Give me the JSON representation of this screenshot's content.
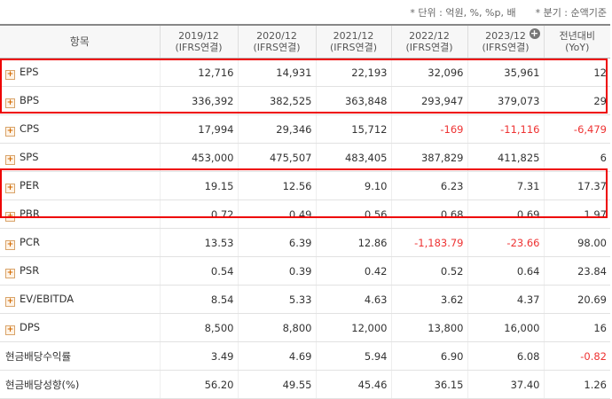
{
  "notes": {
    "unit": "* 단위 : 억원, %, %p, 배",
    "basis": "* 분기 : 순액기준"
  },
  "header": {
    "item": "항목",
    "cols": [
      {
        "l1": "2019/12",
        "l2": "(IFRS연결)"
      },
      {
        "l1": "2020/12",
        "l2": "(IFRS연결)"
      },
      {
        "l1": "2021/12",
        "l2": "(IFRS연결)"
      },
      {
        "l1": "2022/12",
        "l2": "(IFRS연결)"
      },
      {
        "l1": "2023/12",
        "l2": "(IFRS연결)"
      },
      {
        "l1": "전년대비",
        "l2": "(YoY)"
      }
    ]
  },
  "rows": [
    {
      "label": "EPS",
      "expand": true,
      "v": [
        "12,716",
        "14,931",
        "22,193",
        "32,096",
        "35,961",
        "12"
      ]
    },
    {
      "label": "BPS",
      "expand": true,
      "v": [
        "336,392",
        "382,525",
        "363,848",
        "293,947",
        "379,073",
        "29"
      ]
    },
    {
      "label": "CPS",
      "expand": true,
      "v": [
        "17,994",
        "29,346",
        "15,712",
        "-169",
        "-11,116",
        "-6,479"
      ]
    },
    {
      "label": "SPS",
      "expand": true,
      "v": [
        "453,000",
        "475,507",
        "483,405",
        "387,829",
        "411,825",
        "6"
      ]
    },
    {
      "label": "PER",
      "expand": true,
      "v": [
        "19.15",
        "12.56",
        "9.10",
        "6.23",
        "7.31",
        "17.37"
      ]
    },
    {
      "label": "PBR",
      "expand": true,
      "v": [
        "0.72",
        "0.49",
        "0.56",
        "0.68",
        "0.69",
        "1.97"
      ]
    },
    {
      "label": "PCR",
      "expand": true,
      "v": [
        "13.53",
        "6.39",
        "12.86",
        "-1,183.79",
        "-23.66",
        "98.00"
      ]
    },
    {
      "label": "PSR",
      "expand": true,
      "v": [
        "0.54",
        "0.39",
        "0.42",
        "0.52",
        "0.64",
        "23.84"
      ]
    },
    {
      "label": "EV/EBITDA",
      "expand": true,
      "v": [
        "8.54",
        "5.33",
        "4.63",
        "3.62",
        "4.37",
        "20.69"
      ]
    },
    {
      "label": "DPS",
      "expand": true,
      "v": [
        "8,500",
        "8,800",
        "12,000",
        "13,800",
        "16,000",
        "16"
      ]
    },
    {
      "label": "현금배당수익률",
      "expand": false,
      "v": [
        "3.49",
        "4.69",
        "5.94",
        "6.90",
        "6.08",
        "-0.82"
      ]
    },
    {
      "label": "현금배당성향(%)",
      "expand": false,
      "v": [
        "56.20",
        "49.55",
        "45.46",
        "36.15",
        "37.40",
        "1.26"
      ]
    }
  ],
  "colors": {
    "highlight": "#e00000",
    "negative": "#e33333",
    "header_bg": "#f7f7f7"
  }
}
